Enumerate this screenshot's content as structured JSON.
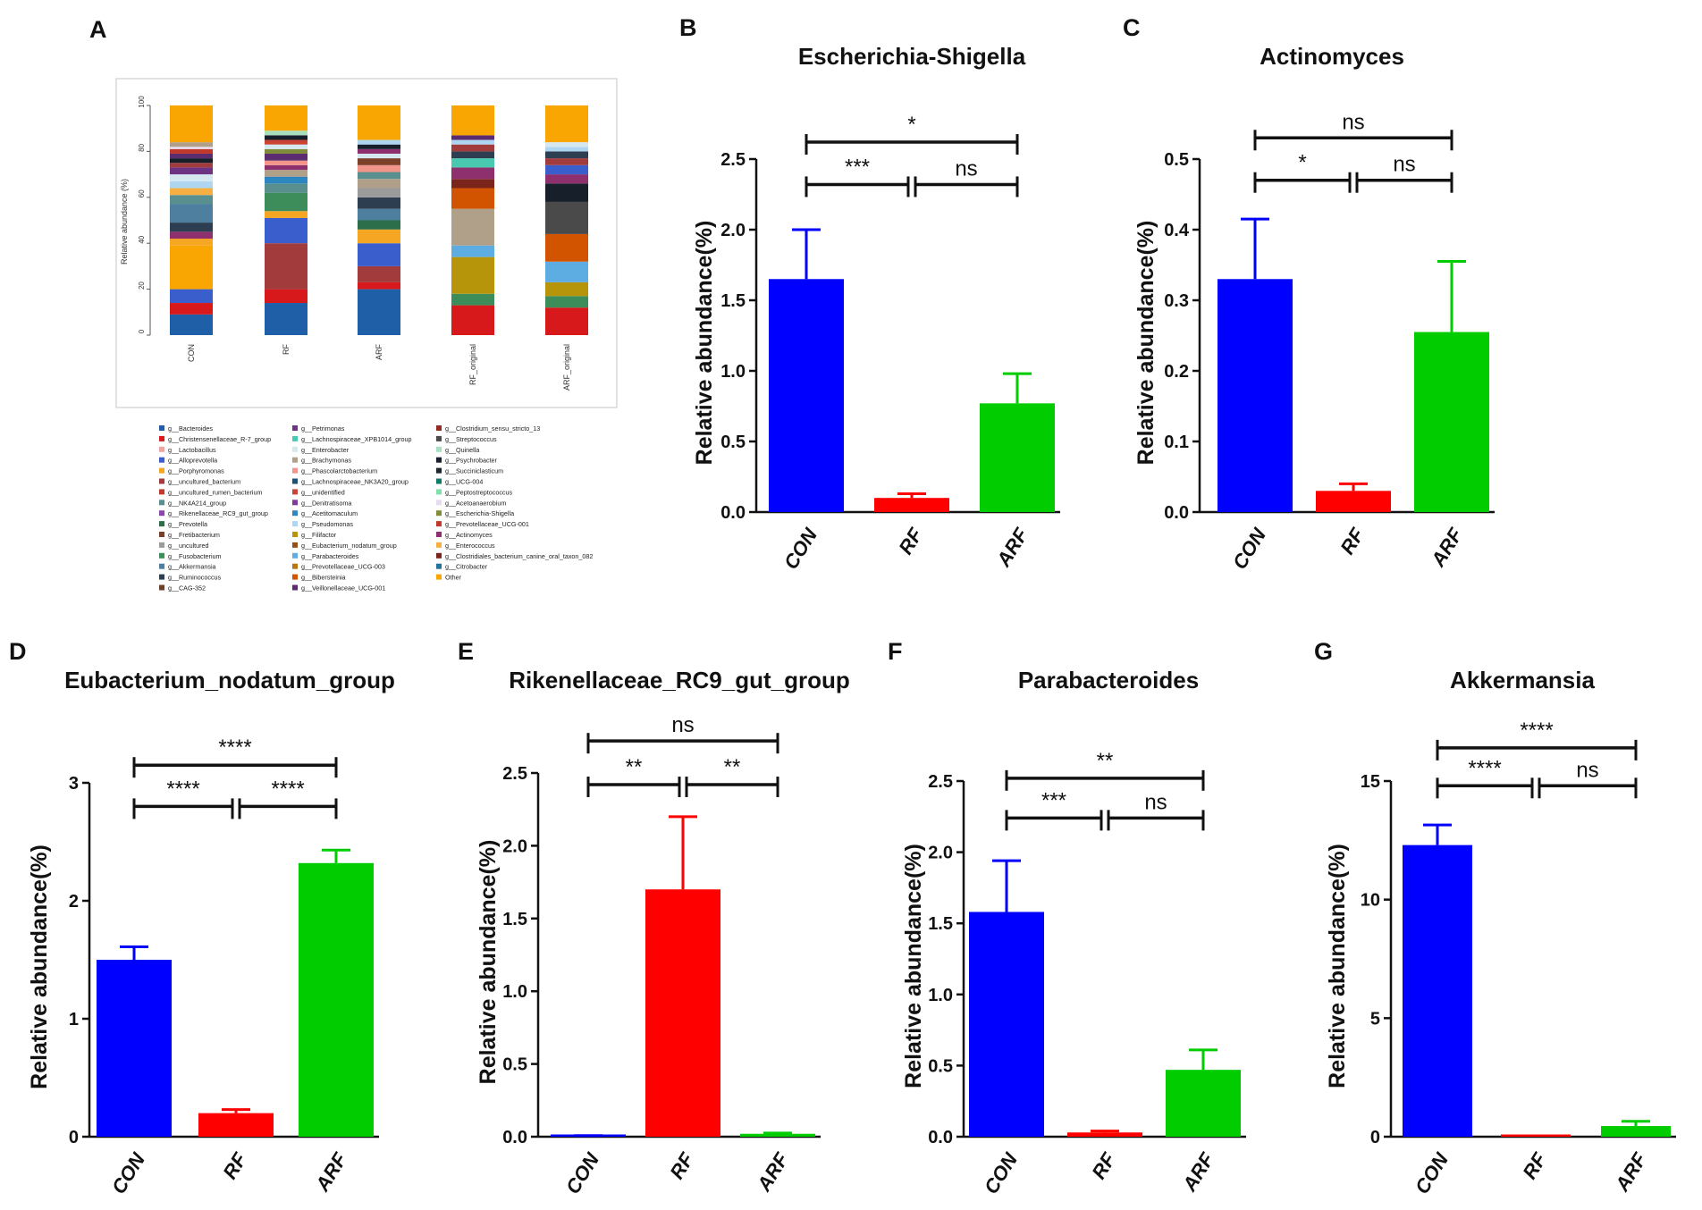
{
  "panel_a": {
    "label": "A",
    "ylabel": "Relative abundance (%)",
    "yticks": [
      "0",
      "20",
      "40",
      "60",
      "80",
      "100"
    ],
    "legend": [
      {
        "name": "g__Bacteroides",
        "color": "#1f5fa8"
      },
      {
        "name": "g__Christensenellaceae_R-7_group",
        "color": "#d7191c"
      },
      {
        "name": "g__Lactobacillus",
        "color": "#f4a3a3"
      },
      {
        "name": "g__Alloprevotella",
        "color": "#3a5fcd"
      },
      {
        "name": "g__Porphyromonas",
        "color": "#f5a623"
      },
      {
        "name": "g__uncultured_bacterium",
        "color": "#a23b3b"
      },
      {
        "name": "g__uncultured_rumen_bacterium",
        "color": "#c0392b"
      },
      {
        "name": "g__NK4A214_group",
        "color": "#5a8f8f"
      },
      {
        "name": "g__Rikenellaceae_RC9_gut_group",
        "color": "#8e44ad"
      },
      {
        "name": "g__Prevotella",
        "color": "#2c6e49"
      },
      {
        "name": "g__Fretibacterium",
        "color": "#7b3f2a"
      },
      {
        "name": "g__uncultured",
        "color": "#9b9b9b"
      },
      {
        "name": "g__Fusobacterium",
        "color": "#3c8d5a"
      },
      {
        "name": "g__Akkermansia",
        "color": "#4f7f9f"
      },
      {
        "name": "g__Ruminococcus",
        "color": "#2d3e50"
      },
      {
        "name": "g__CAG-352",
        "color": "#6b4226"
      },
      {
        "name": "g__Petrimonas",
        "color": "#6c3483"
      },
      {
        "name": "g__Lachnospiraceae_XPB1014_group",
        "color": "#48c9b0"
      },
      {
        "name": "g__Enterobacter",
        "color": "#d5e8f0"
      },
      {
        "name": "g__Brachymonas",
        "color": "#b0a08a"
      },
      {
        "name": "g__Phascolarctobacterium",
        "color": "#f1948a"
      },
      {
        "name": "g__Lachnospiraceae_NK3A20_group",
        "color": "#1a5276"
      },
      {
        "name": "g__unidentified",
        "color": "#cb4335"
      },
      {
        "name": "g__Denitratisoma",
        "color": "#7d3c98"
      },
      {
        "name": "g__Acetitomaculum",
        "color": "#2e86c1"
      },
      {
        "name": "g__Pseudomonas",
        "color": "#aed6f1"
      },
      {
        "name": "g__Filifactor",
        "color": "#b7950b"
      },
      {
        "name": "g__Eubacterium_nodatum_group",
        "color": "#935116"
      },
      {
        "name": "g__Parabacteroides",
        "color": "#5dade2"
      },
      {
        "name": "g__Prevotellaceae_UCG-003",
        "color": "#b9770e"
      },
      {
        "name": "g__Bibersteinia",
        "color": "#d35400"
      },
      {
        "name": "g__Veillonellaceae_UCG-001",
        "color": "#5b2c6f"
      },
      {
        "name": "g__Clostridium_sensu_stricto_13",
        "color": "#922b21"
      },
      {
        "name": "g__Streptococcus",
        "color": "#4a4a4a"
      },
      {
        "name": "g__Quinella",
        "color": "#a9dfbf"
      },
      {
        "name": "g__Psychrobacter",
        "color": "#17202a"
      },
      {
        "name": "g__Succiniclasticum",
        "color": "#1b2631"
      },
      {
        "name": "g__UCG-004",
        "color": "#117a65"
      },
      {
        "name": "g__Peptostreptococcus",
        "color": "#82e0aa"
      },
      {
        "name": "g__Acetoanaerobium",
        "color": "#e8daef"
      },
      {
        "name": "g__Escherichia-Shigella",
        "color": "#7f8c3a"
      },
      {
        "name": "g__Prevotellaceae_UCG-001",
        "color": "#c0392b"
      },
      {
        "name": "g__Actinomyces",
        "color": "#8e2f6e"
      },
      {
        "name": "g__Enterococcus",
        "color": "#f5b041"
      },
      {
        "name": "g__Clostridiales_bacterium_canine_oral_taxon_082",
        "color": "#7b241c"
      },
      {
        "name": "g__Citrobacter",
        "color": "#2471a3"
      },
      {
        "name": "Other",
        "color": "#f9a602"
      }
    ]
  },
  "stacked_data": {
    "type": "stacked_bar",
    "categories": [
      "CON",
      "RF",
      "ARF",
      "RF_original",
      "ARF_original"
    ],
    "ylim": [
      0,
      100
    ],
    "segments": [
      [
        {
          "v": 9,
          "c": "#1f5fa8"
        },
        {
          "v": 5,
          "c": "#d7191c"
        },
        {
          "v": 6,
          "c": "#3a5fcd"
        },
        {
          "v": 19,
          "c": "#f9a602"
        },
        {
          "v": 3,
          "c": "#f5a623"
        },
        {
          "v": 3,
          "c": "#8e2f6e"
        },
        {
          "v": 4,
          "c": "#2d3e50"
        },
        {
          "v": 8,
          "c": "#4f7f9f"
        },
        {
          "v": 4,
          "c": "#5a8f8f"
        },
        {
          "v": 3,
          "c": "#f5b041"
        },
        {
          "v": 3,
          "c": "#aed6f1"
        },
        {
          "v": 3,
          "c": "#d5e8f0"
        },
        {
          "v": 3,
          "c": "#6c3483"
        },
        {
          "v": 2,
          "c": "#a23b3b"
        },
        {
          "v": 2,
          "c": "#17202a"
        },
        {
          "v": 2,
          "c": "#5b2c6f"
        },
        {
          "v": 2,
          "c": "#c0392b"
        },
        {
          "v": 1,
          "c": "#e8daef"
        },
        {
          "v": 2,
          "c": "#b0a08a"
        },
        {
          "v": 16,
          "c": "#f9a602"
        }
      ],
      [
        {
          "v": 14,
          "c": "#1f5fa8"
        },
        {
          "v": 6,
          "c": "#d7191c"
        },
        {
          "v": 20,
          "c": "#a23b3b"
        },
        {
          "v": 11,
          "c": "#3a5fcd"
        },
        {
          "v": 3,
          "c": "#f5a623"
        },
        {
          "v": 8,
          "c": "#3c8d5a"
        },
        {
          "v": 4,
          "c": "#5a8f8f"
        },
        {
          "v": 3,
          "c": "#2e86c1"
        },
        {
          "v": 3,
          "c": "#b0a08a"
        },
        {
          "v": 2,
          "c": "#8e2f6e"
        },
        {
          "v": 2,
          "c": "#f1948a"
        },
        {
          "v": 3,
          "c": "#5b2c6f"
        },
        {
          "v": 2,
          "c": "#7f8c3a"
        },
        {
          "v": 2,
          "c": "#d5e8f0"
        },
        {
          "v": 2,
          "c": "#cb4335"
        },
        {
          "v": 2,
          "c": "#17202a"
        },
        {
          "v": 2,
          "c": "#a9dfbf"
        },
        {
          "v": 11,
          "c": "#f9a602"
        }
      ],
      [
        {
          "v": 20,
          "c": "#1f5fa8"
        },
        {
          "v": 3,
          "c": "#d7191c"
        },
        {
          "v": 7,
          "c": "#a23b3b"
        },
        {
          "v": 10,
          "c": "#3a5fcd"
        },
        {
          "v": 6,
          "c": "#f5a623"
        },
        {
          "v": 4,
          "c": "#2c6e49"
        },
        {
          "v": 5,
          "c": "#4f7f9f"
        },
        {
          "v": 5,
          "c": "#2d3e50"
        },
        {
          "v": 4,
          "c": "#9b9b9b"
        },
        {
          "v": 4,
          "c": "#b0a08a"
        },
        {
          "v": 3,
          "c": "#5a8f8f"
        },
        {
          "v": 3,
          "c": "#f1948a"
        },
        {
          "v": 3,
          "c": "#7b3f2a"
        },
        {
          "v": 2,
          "c": "#d5e8f0"
        },
        {
          "v": 2,
          "c": "#8e2f6e"
        },
        {
          "v": 2,
          "c": "#17202a"
        },
        {
          "v": 2,
          "c": "#aed6f1"
        },
        {
          "v": 15,
          "c": "#f9a602"
        }
      ],
      [
        {
          "v": 13,
          "c": "#d7191c"
        },
        {
          "v": 5,
          "c": "#3c8d5a"
        },
        {
          "v": 16,
          "c": "#b7950b"
        },
        {
          "v": 5,
          "c": "#5dade2"
        },
        {
          "v": 16,
          "c": "#b0a08a"
        },
        {
          "v": 9,
          "c": "#d35400"
        },
        {
          "v": 4,
          "c": "#7b241c"
        },
        {
          "v": 5,
          "c": "#8e2f6e"
        },
        {
          "v": 4,
          "c": "#48c9b0"
        },
        {
          "v": 3,
          "c": "#2d3e50"
        },
        {
          "v": 3,
          "c": "#a23b3b"
        },
        {
          "v": 2,
          "c": "#aed6f1"
        },
        {
          "v": 2,
          "c": "#5b2c6f"
        },
        {
          "v": 13,
          "c": "#f9a602"
        }
      ],
      [
        {
          "v": 12,
          "c": "#d7191c"
        },
        {
          "v": 5,
          "c": "#3c8d5a"
        },
        {
          "v": 6,
          "c": "#b7950b"
        },
        {
          "v": 9,
          "c": "#5dade2"
        },
        {
          "v": 12,
          "c": "#d35400"
        },
        {
          "v": 14,
          "c": "#4a4a4a"
        },
        {
          "v": 8,
          "c": "#17202a"
        },
        {
          "v": 4,
          "c": "#8e2f6e"
        },
        {
          "v": 4,
          "c": "#3a5fcd"
        },
        {
          "v": 3,
          "c": "#a23b3b"
        },
        {
          "v": 3,
          "c": "#2d3e50"
        },
        {
          "v": 2,
          "c": "#aed6f1"
        },
        {
          "v": 2,
          "c": "#d5e8f0"
        },
        {
          "v": 16,
          "c": "#f9a602"
        }
      ]
    ]
  },
  "chart_data": [
    {
      "panel": "B",
      "type": "bar",
      "title": "Escherichia-Shigella",
      "ylabel": "Relative abundance(%)",
      "categories": [
        "CON",
        "RF",
        "ARF"
      ],
      "values": [
        1.65,
        0.1,
        0.77
      ],
      "errors": [
        0.35,
        0.03,
        0.21
      ],
      "colors": [
        "#0000ff",
        "#ff0000",
        "#00cc00"
      ],
      "ylim": [
        0,
        2.5
      ],
      "yticks": [
        "0.0",
        "0.5",
        "1.0",
        "1.5",
        "2.0",
        "2.5"
      ],
      "tick_values": [
        0,
        0.5,
        1.0,
        1.5,
        2.0,
        2.5
      ],
      "comparisons": [
        {
          "pair": [
            0,
            2
          ],
          "label": "*",
          "y": 2.62
        },
        {
          "pair": [
            0,
            1
          ],
          "label": "***",
          "y": 2.32
        },
        {
          "pair": [
            1,
            2
          ],
          "label": "ns",
          "y": 2.32
        }
      ]
    },
    {
      "panel": "C",
      "type": "bar",
      "title": "Actinomyces",
      "ylabel": "Relative abundance(%)",
      "categories": [
        "CON",
        "RF",
        "ARF"
      ],
      "values": [
        0.33,
        0.03,
        0.255
      ],
      "errors": [
        0.085,
        0.01,
        0.1
      ],
      "colors": [
        "#0000ff",
        "#ff0000",
        "#00cc00"
      ],
      "ylim": [
        0,
        0.5
      ],
      "yticks": [
        "0.0",
        "0.1",
        "0.2",
        "0.3",
        "0.4",
        "0.5"
      ],
      "tick_values": [
        0,
        0.1,
        0.2,
        0.3,
        0.4,
        0.5
      ],
      "comparisons": [
        {
          "pair": [
            0,
            2
          ],
          "label": "ns",
          "y": 0.53
        },
        {
          "pair": [
            0,
            1
          ],
          "label": "*",
          "y": 0.47
        },
        {
          "pair": [
            1,
            2
          ],
          "label": "ns",
          "y": 0.47
        }
      ]
    },
    {
      "panel": "D",
      "type": "bar",
      "title": "Eubacterium_nodatum_group",
      "ylabel": "Relative abundance(%)",
      "categories": [
        "CON",
        "RF",
        "ARF"
      ],
      "values": [
        1.5,
        0.2,
        2.32
      ],
      "errors": [
        0.11,
        0.03,
        0.11
      ],
      "colors": [
        "#0000ff",
        "#ff0000",
        "#00cc00"
      ],
      "ylim": [
        0,
        3
      ],
      "yticks": [
        "0",
        "1",
        "2",
        "3"
      ],
      "tick_values": [
        0,
        1,
        2,
        3
      ],
      "comparisons": [
        {
          "pair": [
            0,
            2
          ],
          "label": "****",
          "y": 3.15
        },
        {
          "pair": [
            0,
            1
          ],
          "label": "****",
          "y": 2.8
        },
        {
          "pair": [
            1,
            2
          ],
          "label": "****",
          "y": 2.8
        }
      ]
    },
    {
      "panel": "E",
      "type": "bar",
      "title": "Rikenellaceae_RC9_gut_group",
      "ylabel": "Relative abundance(%)",
      "categories": [
        "CON",
        "RF",
        "ARF"
      ],
      "values": [
        0.005,
        1.7,
        0.02
      ],
      "errors": [
        0.003,
        0.5,
        0.005
      ],
      "colors": [
        "#0000ff",
        "#ff0000",
        "#00cc00"
      ],
      "ylim": [
        0,
        2.5
      ],
      "yticks": [
        "0.0",
        "0.5",
        "1.0",
        "1.5",
        "2.0",
        "2.5"
      ],
      "tick_values": [
        0,
        0.5,
        1.0,
        1.5,
        2.0,
        2.5
      ],
      "comparisons": [
        {
          "pair": [
            0,
            2
          ],
          "label": "ns",
          "y": 2.72
        },
        {
          "pair": [
            0,
            1
          ],
          "label": "**",
          "y": 2.42
        },
        {
          "pair": [
            1,
            2
          ],
          "label": "**",
          "y": 2.42
        }
      ]
    },
    {
      "panel": "F",
      "type": "bar",
      "title": "Parabacteroides",
      "ylabel": "Relative abundance(%)",
      "categories": [
        "CON",
        "RF",
        "ARF"
      ],
      "values": [
        1.58,
        0.03,
        0.47
      ],
      "errors": [
        0.36,
        0.01,
        0.14
      ],
      "colors": [
        "#0000ff",
        "#ff0000",
        "#00cc00"
      ],
      "ylim": [
        0,
        2.5
      ],
      "yticks": [
        "0.0",
        "0.5",
        "1.0",
        "1.5",
        "2.0",
        "2.5"
      ],
      "tick_values": [
        0,
        0.5,
        1.0,
        1.5,
        2.0,
        2.5
      ],
      "comparisons": [
        {
          "pair": [
            0,
            2
          ],
          "label": "**",
          "y": 2.52
        },
        {
          "pair": [
            0,
            1
          ],
          "label": "***",
          "y": 2.24
        },
        {
          "pair": [
            1,
            2
          ],
          "label": "ns",
          "y": 2.24
        }
      ]
    },
    {
      "panel": "G",
      "type": "bar",
      "title": "Akkermansia",
      "ylabel": "Relative abundance(%)",
      "categories": [
        "CON",
        "RF",
        "ARF"
      ],
      "values": [
        12.3,
        0.0,
        0.45
      ],
      "errors": [
        0.85,
        0.0,
        0.2
      ],
      "colors": [
        "#0000ff",
        "#ff0000",
        "#00cc00"
      ],
      "ylim": [
        0,
        15
      ],
      "yticks": [
        "0",
        "5",
        "10",
        "15"
      ],
      "tick_values": [
        0,
        5,
        10,
        15
      ],
      "comparisons": [
        {
          "pair": [
            0,
            2
          ],
          "label": "****",
          "y": 16.4
        },
        {
          "pair": [
            0,
            1
          ],
          "label": "****",
          "y": 14.8
        },
        {
          "pair": [
            1,
            2
          ],
          "label": "ns",
          "y": 14.8
        }
      ]
    }
  ]
}
